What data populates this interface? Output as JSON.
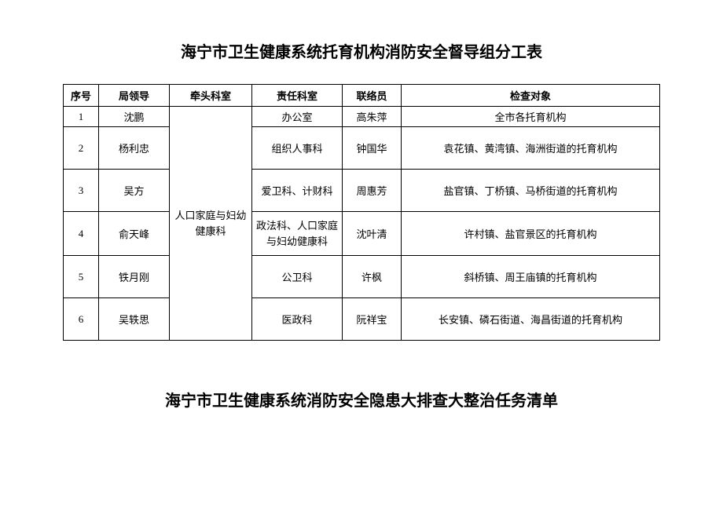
{
  "title": "海宁市卫生健康系统托育机构消防安全督导组分工表",
  "subtitle": "海宁市卫生健康系统消防安全隐患大排查大整治任务清单",
  "table": {
    "columns": [
      "序号",
      "局领导",
      "牵头科室",
      "责任科室",
      "联络员",
      "检查对象"
    ],
    "lead_dept_merged": "人口家庭与妇幼健康科",
    "rows": [
      {
        "seq": "1",
        "leader": "沈鹏",
        "resp_dept": "办公室",
        "liaison": "高朱萍",
        "target": "全市各托育机构"
      },
      {
        "seq": "2",
        "leader": "杨利忠",
        "resp_dept": "组织人事科",
        "liaison": "钟国华",
        "target": "袁花镇、黄湾镇、海洲街道的托育机构"
      },
      {
        "seq": "3",
        "leader": "吴方",
        "resp_dept": "爱卫科、计财科",
        "liaison": "周惠芳",
        "target": "盐官镇、丁桥镇、马桥街道的托育机构"
      },
      {
        "seq": "4",
        "leader": "俞天峰",
        "resp_dept": "政法科、人口家庭与妇幼健康科",
        "liaison": "沈叶清",
        "target": "许村镇、盐官景区的托育机构"
      },
      {
        "seq": "5",
        "leader": "铁月刚",
        "resp_dept": "公卫科",
        "liaison": "许枫",
        "target": "斜桥镇、周王庙镇的托育机构"
      },
      {
        "seq": "6",
        "leader": "吴轶思",
        "resp_dept": "医政科",
        "liaison": "阮祥宝",
        "target": "长安镇、磷石街道、海昌街道的托育机构"
      }
    ]
  },
  "style": {
    "background_color": "#ffffff",
    "border_color": "#000000",
    "text_color": "#000000",
    "title_fontsize": 20,
    "cell_fontsize": 13
  }
}
